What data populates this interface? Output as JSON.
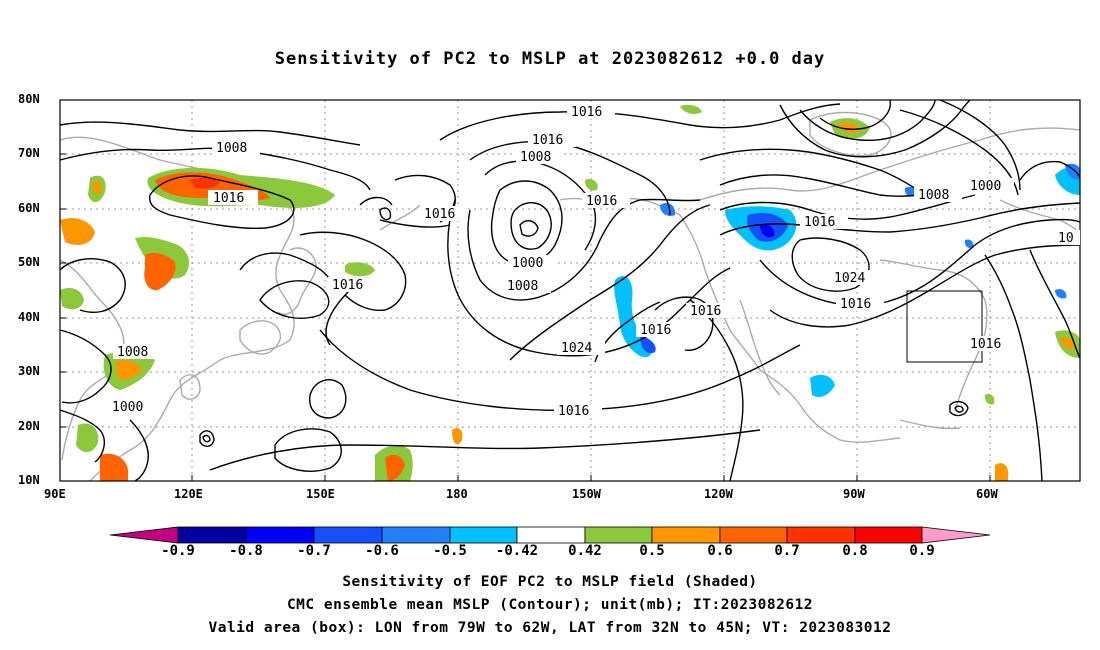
{
  "title": "Sensitivity of PC2 to MSLP at 2023082612 +0.0 day",
  "lat_labels": [
    "80N",
    "70N",
    "60N",
    "50N",
    "40N",
    "30N",
    "20N",
    "10N"
  ],
  "lon_labels": [
    "90E",
    "120E",
    "150E",
    "180",
    "150W",
    "120W",
    "90W",
    "60W"
  ],
  "contour_labels": [
    "1016",
    "1008",
    "1016",
    "1008",
    "1016",
    "1016",
    "1008",
    "1000",
    "1008",
    "1016",
    "1016",
    "1024",
    "1016",
    "1016",
    "1016",
    "1008",
    "1000",
    "1000",
    "1008",
    "1016",
    "1024",
    "1016",
    "1016",
    "10"
  ],
  "colorbar": {
    "labels": [
      "-0.9",
      "-0.8",
      "-0.7",
      "-0.6",
      "-0.5",
      "-0.42",
      "0.42",
      "0.5",
      "0.6",
      "0.7",
      "0.8",
      "0.9"
    ],
    "colors": [
      "#c00080",
      "#0000a0",
      "#0000ff",
      "#1450ff",
      "#2080ff",
      "#00c0ff",
      "#ffffff",
      "#8cc83c",
      "#ff9600",
      "#ff6400",
      "#ff3200",
      "#ff0000",
      "#ff9cc8"
    ]
  },
  "valid_box": {
    "lon_min": -79,
    "lon_max": -62,
    "lat_min": 32,
    "lat_max": 45
  },
  "footer": {
    "line1": "Sensitivity of EOF PC2 to MSLP field (Shaded)",
    "line2": "CMC ensemble mean MSLP (Contour); unit(mb); IT:2023082612",
    "line3": "Valid area (box): LON from 79W to 62W, LAT from 32N to 45N; VT: 2023083012"
  }
}
